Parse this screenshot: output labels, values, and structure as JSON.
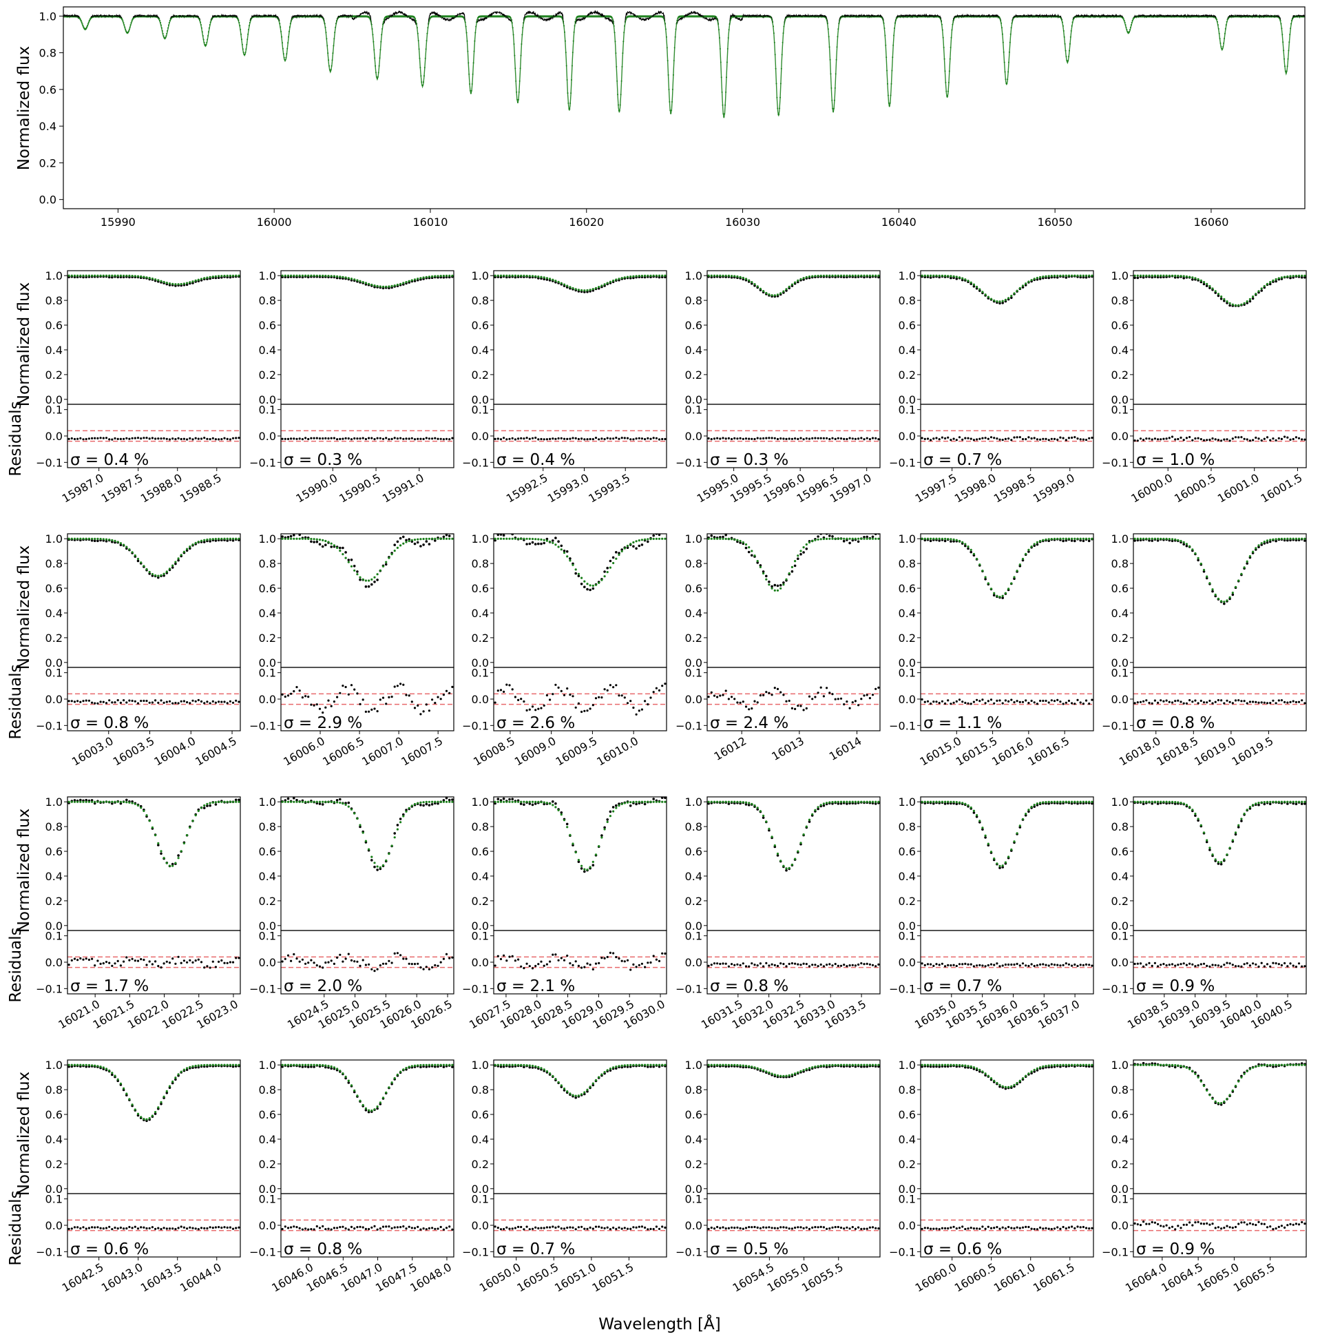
{
  "chart_data": {
    "type": "scatter",
    "xlabel": "Wavelength [Å]",
    "ylabel": "Normalized flux",
    "residual_ylabel": "Residuals",
    "series_colors": {
      "observed": "#000000",
      "model": "#1a7f1a",
      "threshold": "#e8696b"
    },
    "threshold_levels": [
      0.02,
      -0.02
    ],
    "overview": {
      "xlim": [
        15986.5,
        16066.0
      ],
      "ylim": [
        -0.05,
        1.05
      ],
      "xticks": [
        "15990",
        "16000",
        "16010",
        "16020",
        "16030",
        "16040",
        "16050",
        "16060"
      ],
      "yticks": [
        "0.0",
        "0.2",
        "0.4",
        "0.6",
        "0.8",
        "1.0"
      ],
      "lines": [
        {
          "center": 15987.9,
          "depth": 0.07,
          "width": 0.18
        },
        {
          "center": 15990.6,
          "depth": 0.09,
          "width": 0.18
        },
        {
          "center": 15993.0,
          "depth": 0.12,
          "width": 0.18
        },
        {
          "center": 15995.6,
          "depth": 0.16,
          "width": 0.18
        },
        {
          "center": 15998.1,
          "depth": 0.21,
          "width": 0.18
        },
        {
          "center": 16000.7,
          "depth": 0.24,
          "width": 0.18
        },
        {
          "center": 16003.6,
          "depth": 0.3,
          "width": 0.18
        },
        {
          "center": 16006.6,
          "depth": 0.34,
          "width": 0.18
        },
        {
          "center": 16009.5,
          "depth": 0.38,
          "width": 0.18
        },
        {
          "center": 16012.6,
          "depth": 0.42,
          "width": 0.16
        },
        {
          "center": 16015.6,
          "depth": 0.47,
          "width": 0.16
        },
        {
          "center": 16018.9,
          "depth": 0.51,
          "width": 0.16
        },
        {
          "center": 16022.1,
          "depth": 0.52,
          "width": 0.16
        },
        {
          "center": 16025.4,
          "depth": 0.53,
          "width": 0.16
        },
        {
          "center": 16028.8,
          "depth": 0.55,
          "width": 0.16
        },
        {
          "center": 16032.3,
          "depth": 0.54,
          "width": 0.16
        },
        {
          "center": 16035.8,
          "depth": 0.52,
          "width": 0.16
        },
        {
          "center": 16039.4,
          "depth": 0.49,
          "width": 0.16
        },
        {
          "center": 16043.1,
          "depth": 0.44,
          "width": 0.16
        },
        {
          "center": 16046.9,
          "depth": 0.37,
          "width": 0.16
        },
        {
          "center": 16050.8,
          "depth": 0.25,
          "width": 0.16
        },
        {
          "center": 16054.7,
          "depth": 0.09,
          "width": 0.16
        },
        {
          "center": 16060.7,
          "depth": 0.18,
          "width": 0.16
        },
        {
          "center": 16064.8,
          "depth": 0.31,
          "width": 0.16
        }
      ]
    },
    "panel_yticks": [
      "0.0",
      "0.2",
      "0.4",
      "0.6",
      "0.8",
      "1.0"
    ],
    "residual_yticks": [
      "0.1",
      "0.0",
      "−0.1"
    ],
    "residual_ylim": [
      -0.12,
      0.12
    ],
    "panels": [
      {
        "xlim": [
          15986.6,
          15988.8
        ],
        "xticks": [
          15987.0,
          15987.5,
          15988.0,
          15988.5
        ],
        "xtick_labels": [
          "15987.0",
          "15987.5",
          "15988.0",
          "15988.5"
        ],
        "center": 15988.0,
        "depth": 0.07,
        "width": 0.22,
        "sigma": "σ = 0.4 %",
        "noise": 0.004,
        "excess": 0.0
      },
      {
        "xlim": [
          15989.4,
          15991.4
        ],
        "xticks": [
          15990.0,
          15990.5,
          15991.0
        ],
        "xtick_labels": [
          "15990.0",
          "15990.5",
          "15991.0"
        ],
        "center": 15990.6,
        "depth": 0.09,
        "width": 0.24,
        "sigma": "σ = 0.3 %",
        "noise": 0.003,
        "excess": 0.0
      },
      {
        "xlim": [
          15991.9,
          15994.0
        ],
        "xticks": [
          15992.5,
          15993.0,
          15993.5
        ],
        "xtick_labels": [
          "15992.5",
          "15993.0",
          "15993.5"
        ],
        "center": 15993.0,
        "depth": 0.12,
        "width": 0.24,
        "sigma": "σ = 0.4 %",
        "noise": 0.004,
        "excess": 0.0
      },
      {
        "xlim": [
          15994.6,
          15997.2
        ],
        "xticks": [
          15995.0,
          15995.5,
          15996.0,
          15996.5,
          15997.0
        ],
        "xtick_labels": [
          "15995.0",
          "15995.5",
          "15996.0",
          "15996.5",
          "15997.0"
        ],
        "center": 15995.6,
        "depth": 0.16,
        "width": 0.22,
        "sigma": "σ = 0.3 %",
        "noise": 0.003,
        "excess": 0.0
      },
      {
        "xlim": [
          15997.1,
          15999.3
        ],
        "xticks": [
          15997.5,
          15998.0,
          15998.5,
          15999.0
        ],
        "xtick_labels": [
          "15997.5",
          "15998.0",
          "15998.5",
          "15999.0"
        ],
        "center": 15998.1,
        "depth": 0.21,
        "width": 0.22,
        "sigma": "σ = 0.7 %",
        "noise": 0.007,
        "excess": 0.0
      },
      {
        "xlim": [
          15999.6,
          16001.6
        ],
        "xticks": [
          16000.0,
          16000.5,
          16001.0,
          16001.5
        ],
        "xtick_labels": [
          "16000.0",
          "16000.5",
          "16001.0",
          "16001.5"
        ],
        "center": 16000.8,
        "depth": 0.24,
        "width": 0.22,
        "sigma": "σ = 1.0 %",
        "noise": 0.01,
        "excess": 0.0
      },
      {
        "xlim": [
          16002.5,
          16004.6
        ],
        "xticks": [
          16003.0,
          16003.5,
          16004.0,
          16004.5
        ],
        "xtick_labels": [
          "16003.0",
          "16003.5",
          "16004.0",
          "16004.5"
        ],
        "center": 16003.6,
        "depth": 0.3,
        "width": 0.22,
        "sigma": "σ = 0.8 %",
        "noise": 0.008,
        "excess": 0.0
      },
      {
        "xlim": [
          16005.5,
          16007.7
        ],
        "xticks": [
          16006.0,
          16006.5,
          16007.0,
          16007.5
        ],
        "xtick_labels": [
          "16006.0",
          "16006.5",
          "16007.0",
          "16007.5"
        ],
        "center": 16006.6,
        "depth": 0.34,
        "width": 0.22,
        "sigma": "σ = 2.9 %",
        "noise": 0.029,
        "excess": 0.04
      },
      {
        "xlim": [
          16008.3,
          16010.4
        ],
        "xticks": [
          16008.5,
          16009.0,
          16009.5,
          16010.0
        ],
        "xtick_labels": [
          "16008.5",
          "16009.0",
          "16009.5",
          "16010.0"
        ],
        "center": 16009.5,
        "depth": 0.38,
        "width": 0.22,
        "sigma": "σ = 2.6 %",
        "noise": 0.026,
        "excess": 0.04
      },
      {
        "xlim": [
          16011.4,
          16014.4
        ],
        "xticks": [
          16012.0,
          16013.0,
          16014.0
        ],
        "xtick_labels": [
          "16012",
          "16013",
          "16014"
        ],
        "center": 16012.6,
        "depth": 0.42,
        "width": 0.25,
        "sigma": "σ = 2.4 %",
        "noise": 0.024,
        "excess": 0.03
      },
      {
        "xlim": [
          16014.5,
          16016.9
        ],
        "xticks": [
          16015.0,
          16015.5,
          16016.0,
          16016.5
        ],
        "xtick_labels": [
          "16015.0",
          "16015.5",
          "16016.0",
          "16016.5"
        ],
        "center": 16015.6,
        "depth": 0.47,
        "width": 0.22,
        "sigma": "σ = 1.1 %",
        "noise": 0.011,
        "excess": 0.0
      },
      {
        "xlim": [
          16017.7,
          16020.0
        ],
        "xticks": [
          16018.0,
          16018.5,
          16019.0,
          16019.5
        ],
        "xtick_labels": [
          "16018.0",
          "16018.5",
          "16019.0",
          "16019.5"
        ],
        "center": 16018.9,
        "depth": 0.51,
        "width": 0.22,
        "sigma": "σ = 0.8 %",
        "noise": 0.008,
        "excess": 0.0
      },
      {
        "xlim": [
          16020.6,
          16023.1
        ],
        "xticks": [
          16021.0,
          16021.5,
          16022.0,
          16022.5,
          16023.0
        ],
        "xtick_labels": [
          "16021.0",
          "16021.5",
          "16022.0",
          "16022.5",
          "16023.0"
        ],
        "center": 16022.1,
        "depth": 0.52,
        "width": 0.2,
        "sigma": "σ = 1.7 %",
        "noise": 0.017,
        "excess": 0.01
      },
      {
        "xlim": [
          16023.8,
          16026.6
        ],
        "xticks": [
          16024.5,
          16025.0,
          16025.5,
          16026.0,
          16026.5
        ],
        "xtick_labels": [
          "16024.5",
          "16025.0",
          "16025.5",
          "16026.0",
          "16026.5"
        ],
        "center": 16025.4,
        "depth": 0.53,
        "width": 0.22,
        "sigma": "σ = 2.0 %",
        "noise": 0.02,
        "excess": 0.02
      },
      {
        "xlim": [
          16027.3,
          16030.1
        ],
        "xticks": [
          16027.5,
          16028.0,
          16028.5,
          16029.0,
          16029.5,
          16030.0
        ],
        "xtick_labels": [
          "16027.5",
          "16028.0",
          "16028.5",
          "16029.0",
          "16029.5",
          "16030.0"
        ],
        "center": 16028.8,
        "depth": 0.55,
        "width": 0.22,
        "sigma": "σ = 2.1 %",
        "noise": 0.021,
        "excess": 0.02
      },
      {
        "xlim": [
          16031.0,
          16033.8
        ],
        "xticks": [
          16031.5,
          16032.0,
          16032.5,
          16033.0,
          16033.5
        ],
        "xtick_labels": [
          "16031.5",
          "16032.0",
          "16032.5",
          "16033.0",
          "16033.5"
        ],
        "center": 16032.3,
        "depth": 0.54,
        "width": 0.22,
        "sigma": "σ = 0.8 %",
        "noise": 0.008,
        "excess": 0.0
      },
      {
        "xlim": [
          16034.5,
          16037.3
        ],
        "xticks": [
          16035.0,
          16035.5,
          16036.0,
          16036.5,
          16037.0
        ],
        "xtick_labels": [
          "16035.0",
          "16035.5",
          "16036.0",
          "16036.5",
          "16037.0"
        ],
        "center": 16035.8,
        "depth": 0.52,
        "width": 0.22,
        "sigma": "σ = 0.7 %",
        "noise": 0.007,
        "excess": 0.0
      },
      {
        "xlim": [
          16038.0,
          16040.8
        ],
        "xticks": [
          16038.5,
          16039.0,
          16039.5,
          16040.0,
          16040.5
        ],
        "xtick_labels": [
          "16038.5",
          "16039.0",
          "16039.5",
          "16040.0",
          "16040.5"
        ],
        "center": 16039.4,
        "depth": 0.49,
        "width": 0.22,
        "sigma": "σ = 0.9 %",
        "noise": 0.009,
        "excess": 0.0
      },
      {
        "xlim": [
          16042.1,
          16044.3
        ],
        "xticks": [
          16042.5,
          16043.0,
          16043.5,
          16044.0
        ],
        "xtick_labels": [
          "16042.5",
          "16043.0",
          "16043.5",
          "16044.0"
        ],
        "center": 16043.1,
        "depth": 0.44,
        "width": 0.22,
        "sigma": "σ = 0.6 %",
        "noise": 0.006,
        "excess": 0.0
      },
      {
        "xlim": [
          16045.6,
          16048.1
        ],
        "xticks": [
          16046.0,
          16046.5,
          16047.0,
          16047.5,
          16048.0
        ],
        "xtick_labels": [
          "16046.0",
          "16046.5",
          "16047.0",
          "16047.5",
          "16048.0"
        ],
        "center": 16046.9,
        "depth": 0.37,
        "width": 0.22,
        "sigma": "σ = 0.8 %",
        "noise": 0.008,
        "excess": 0.0
      },
      {
        "xlim": [
          16049.7,
          16052.0
        ],
        "xticks": [
          16050.0,
          16050.5,
          16051.0,
          16051.5
        ],
        "xtick_labels": [
          "16050.0",
          "16050.5",
          "16051.0",
          "16051.5"
        ],
        "center": 16050.8,
        "depth": 0.25,
        "width": 0.22,
        "sigma": "σ = 0.7 %",
        "noise": 0.007,
        "excess": 0.0
      },
      {
        "xlim": [
          16053.6,
          16056.1
        ],
        "xticks": [
          16054.5,
          16055.0,
          16055.5
        ],
        "xtick_labels": [
          "16054.5",
          "16055.0",
          "16055.5"
        ],
        "center": 16054.7,
        "depth": 0.09,
        "width": 0.24,
        "sigma": "σ = 0.5 %",
        "noise": 0.005,
        "excess": 0.0
      },
      {
        "xlim": [
          16059.6,
          16061.8
        ],
        "xticks": [
          16060.0,
          16060.5,
          16061.0,
          16061.5
        ],
        "xtick_labels": [
          "16060.0",
          "16060.5",
          "16061.0",
          "16061.5"
        ],
        "center": 16060.7,
        "depth": 0.18,
        "width": 0.2,
        "sigma": "σ = 0.6 %",
        "noise": 0.006,
        "excess": 0.0
      },
      {
        "xlim": [
          16063.6,
          16066.0
        ],
        "xticks": [
          16064.0,
          16064.5,
          16065.0,
          16065.5
        ],
        "xtick_labels": [
          "16064.0",
          "16064.5",
          "16065.0",
          "16065.5"
        ],
        "center": 16064.8,
        "depth": 0.31,
        "width": 0.2,
        "sigma": "σ = 0.9 %",
        "noise": 0.009,
        "excess": 0.01
      }
    ]
  }
}
